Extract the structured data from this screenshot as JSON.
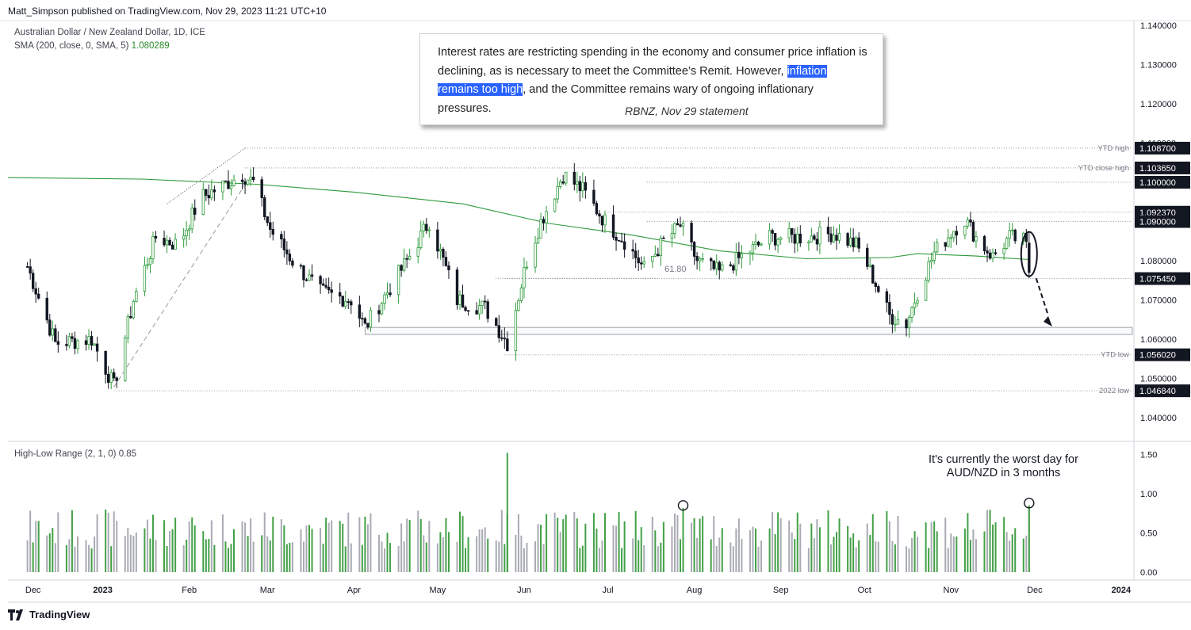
{
  "header": {
    "published": "Matt_Simpson published on TradingView.com, Nov 29, 2023 11:21 UTC+10",
    "symbol": "Australian Dollar / New Zealand Dollar, 1D, ICE",
    "sma_label": "SMA (200, close, 0, SMA, 5)",
    "sma_value": "1.080289",
    "hl_label": "High-Low Range (2, 1, 0)",
    "hl_value": "0.85"
  },
  "colors": {
    "up": "#2d9b3a",
    "down": "#131722",
    "sma": "#2e9a3a",
    "hl_up": "#43a047",
    "hl_down": "#a8abb3",
    "highlight": "#2962ff"
  },
  "annotation": {
    "quote_pre": "Interest rates are restricting spending in the economy and consumer price inflation is declining, as is necessary to meet the Committee’s Remit. However,",
    "quote_highlight": "inflation remains too high",
    "quote_post": ", and the Committee remains wary of ongoing inflationary pressures.",
    "source": "RBNZ, Nov 29 statement",
    "note": "It's currently the worst day for AUD/NZD in 3 months",
    "fib_label": "61.80"
  },
  "footer": {
    "brand": "TradingView"
  },
  "chart_data": [
    {
      "type": "candlestick",
      "title": "Australian Dollar / New Zealand Dollar, 1D, ICE",
      "y_axis_ticks": [
        "1.140000",
        "1.130000",
        "1.120000",
        "1.110000",
        "1.100000",
        "1.090000",
        "1.080000",
        "1.070000",
        "1.060000",
        "1.050000",
        "1.040000"
      ],
      "x_axis_ticks": [
        "Dec",
        "2023",
        "Feb",
        "Mar",
        "Apr",
        "May",
        "Jun",
        "Jul",
        "Aug",
        "Sep",
        "Oct",
        "Nov",
        "Dec",
        "2024"
      ],
      "price_labels": [
        {
          "value": 1.1087,
          "text": "1.108700",
          "tag": "YTD high",
          "dark": true
        },
        {
          "value": 1.10365,
          "text": "1.103650",
          "tag": "YTD close high",
          "dark": true
        },
        {
          "value": 1.1,
          "text": "1.100000",
          "tag": "",
          "dark": true
        },
        {
          "value": 1.09237,
          "text": "1.092370",
          "tag": "",
          "dark": true
        },
        {
          "value": 1.09,
          "text": "1.090000",
          "tag": "",
          "dark": true
        },
        {
          "value": 1.07545,
          "text": "1.075450",
          "tag": "",
          "dark": true
        },
        {
          "value": 1.05602,
          "text": "1.056020",
          "tag": "YTD low",
          "dark": true
        },
        {
          "value": 1.04684,
          "text": "1.046840",
          "tag": "2022 low",
          "dark": true
        }
      ],
      "sma_200": {
        "name": "SMA (200, close, 0, SMA, 5)",
        "last": 1.080289,
        "points": [
          [
            "2022-11-28",
            1.1012
          ],
          [
            "2023-01-15",
            1.1008
          ],
          [
            "2023-02-25",
            1.0995
          ],
          [
            "2023-04-01",
            1.0975
          ],
          [
            "2023-05-10",
            1.0945
          ],
          [
            "2023-06-10",
            1.0895
          ],
          [
            "2023-07-10",
            1.0865
          ],
          [
            "2023-08-10",
            1.0825
          ],
          [
            "2023-09-10",
            1.0805
          ],
          [
            "2023-10-10",
            1.0808
          ],
          [
            "2023-10-20",
            1.0818
          ],
          [
            "2023-11-10",
            1.0812
          ],
          [
            "2023-11-29",
            1.0803
          ]
        ]
      },
      "key_levels": [
        {
          "name": "YTD high",
          "value": 1.1087,
          "from": "2023-02-21"
        },
        {
          "name": "YTD close high",
          "value": 1.10365,
          "from": "2023-02-21"
        },
        {
          "name": "1.100000",
          "value": 1.1,
          "from": "2023-07-15"
        },
        {
          "name": "1.092370",
          "value": 1.09237,
          "from": "2023-07-01"
        },
        {
          "name": "1.090000",
          "value": 1.09,
          "from": "2023-07-15"
        },
        {
          "name": "1.075450",
          "value": 1.07545,
          "from": "2023-05-25"
        },
        {
          "name": "YTD low",
          "value": 1.05602,
          "from": "2023-05-25"
        },
        {
          "name": "2022 low",
          "value": 1.04684,
          "from": "2023-01-05"
        }
      ],
      "support_zone": {
        "from": "2023-04-05",
        "to": "2023-12-31",
        "low": 1.0612,
        "high": 1.063
      },
      "anchors": [
        {
          "date": "2022-12-05",
          "close": 1.0785
        },
        {
          "date": "2022-12-15",
          "close": 1.059
        },
        {
          "date": "2022-12-28",
          "close": 1.06
        },
        {
          "date": "2023-01-05",
          "close": 1.048
        },
        {
          "date": "2023-01-12",
          "close": 1.07
        },
        {
          "date": "2023-01-20",
          "close": 1.086
        },
        {
          "date": "2023-01-28",
          "close": 1.084
        },
        {
          "date": "2023-02-05",
          "close": 1.096
        },
        {
          "date": "2023-02-20",
          "close": 1.102
        },
        {
          "date": "2023-02-24",
          "close": 1.1
        },
        {
          "date": "2023-03-02",
          "close": 1.088
        },
        {
          "date": "2023-03-10",
          "close": 1.08
        },
        {
          "date": "2023-03-20",
          "close": 1.072
        },
        {
          "date": "2023-03-31",
          "close": 1.07
        },
        {
          "date": "2023-04-05",
          "close": 1.063
        },
        {
          "date": "2023-04-20",
          "close": 1.08
        },
        {
          "date": "2023-04-28",
          "close": 1.09
        },
        {
          "date": "2023-05-08",
          "close": 1.07
        },
        {
          "date": "2023-05-18",
          "close": 1.068
        },
        {
          "date": "2023-05-26",
          "close": 1.059
        },
        {
          "date": "2023-06-02",
          "close": 1.08
        },
        {
          "date": "2023-06-07",
          "close": 1.09
        },
        {
          "date": "2023-06-15",
          "close": 1.102
        },
        {
          "date": "2023-06-22",
          "close": 1.098
        },
        {
          "date": "2023-06-30",
          "close": 1.09
        },
        {
          "date": "2023-07-07",
          "close": 1.085
        },
        {
          "date": "2023-07-14",
          "close": 1.078
        },
        {
          "date": "2023-07-21",
          "close": 1.085
        },
        {
          "date": "2023-07-27",
          "close": 1.089
        },
        {
          "date": "2023-08-02",
          "close": 1.08
        },
        {
          "date": "2023-08-10",
          "close": 1.077
        },
        {
          "date": "2023-08-18",
          "close": 1.081
        },
        {
          "date": "2023-08-28",
          "close": 1.086
        },
        {
          "date": "2023-09-10",
          "close": 1.086
        },
        {
          "date": "2023-09-20",
          "close": 1.087
        },
        {
          "date": "2023-09-28",
          "close": 1.084
        },
        {
          "date": "2023-10-02",
          "close": 1.079
        },
        {
          "date": "2023-10-10",
          "close": 1.066
        },
        {
          "date": "2023-10-16",
          "close": 1.064
        },
        {
          "date": "2023-10-20",
          "close": 1.072
        },
        {
          "date": "2023-10-26",
          "close": 1.082
        },
        {
          "date": "2023-11-02",
          "close": 1.088
        },
        {
          "date": "2023-11-06",
          "close": 1.0905
        },
        {
          "date": "2023-11-10",
          "close": 1.086
        },
        {
          "date": "2023-11-16",
          "close": 1.081
        },
        {
          "date": "2023-11-22",
          "close": 1.086
        },
        {
          "date": "2023-11-27",
          "close": 1.085
        },
        {
          "date": "2023-11-28",
          "close": 1.0835
        },
        {
          "date": "2023-11-29",
          "close": 1.077
        }
      ]
    },
    {
      "type": "bar",
      "title": "High-Low Range (2, 1, 0)",
      "y_axis_ticks": [
        "1.50",
        "1.00",
        "0.50",
        "0.00"
      ],
      "last": 0.85,
      "notable": [
        {
          "date": "2023-07-28",
          "value": 0.82
        },
        {
          "date": "2023-11-29",
          "value": 0.85
        }
      ],
      "max": {
        "date": "2023-05-26",
        "value": 1.52
      }
    }
  ]
}
